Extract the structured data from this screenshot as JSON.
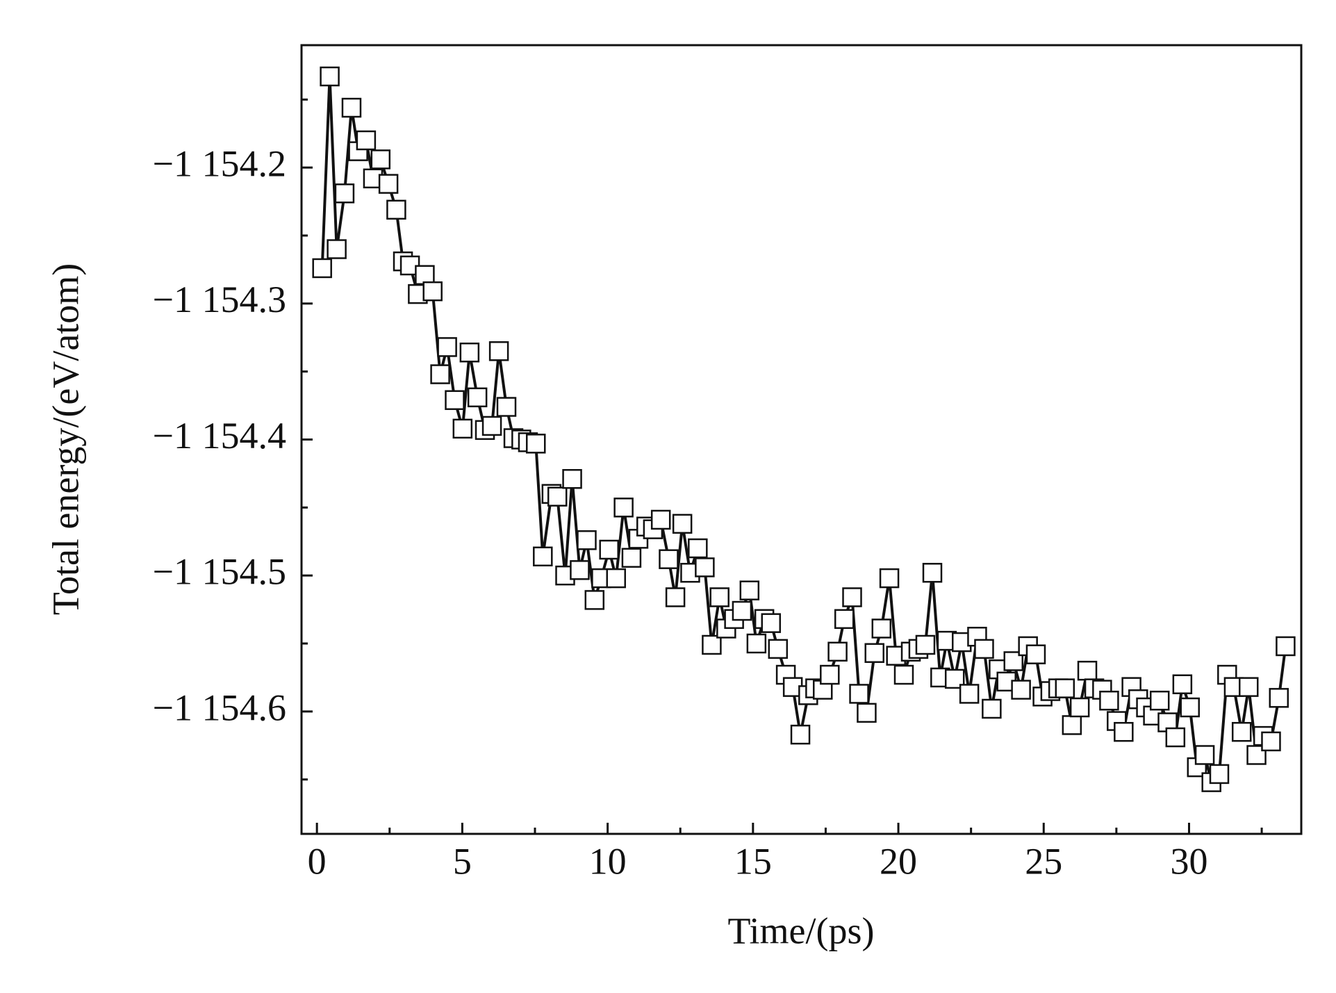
{
  "chart_data": {
    "type": "scatter",
    "x_label": "Time/(ps)",
    "y_label": "Total energy/(eV/atom)",
    "xlim": [
      -0.53,
      33.86
    ],
    "ylim": [
      -1154.69,
      -1154.11
    ],
    "xticks": [
      0,
      5,
      10,
      15,
      20,
      25,
      30
    ],
    "xminorticks": [
      2.5,
      7.5,
      12.5,
      17.5,
      22.5,
      27.5,
      32.5
    ],
    "yticks": [
      {
        "value": -1154.2,
        "label": "−1 154.2"
      },
      {
        "value": -1154.3,
        "label": "−1 154.3"
      },
      {
        "value": -1154.4,
        "label": "−1 154.4"
      },
      {
        "value": -1154.5,
        "label": "−1 154.5"
      },
      {
        "value": -1154.6,
        "label": "−1 154.6"
      }
    ],
    "yminorticks": [
      -1154.15,
      -1154.25,
      -1154.35,
      -1154.45,
      -1154.55,
      -1154.65
    ],
    "grid": false,
    "series": [
      {
        "color": "#111111",
        "x": [
          0.18,
          0.44,
          0.68,
          0.95,
          1.19,
          1.42,
          1.69,
          1.93,
          2.19,
          2.46,
          2.73,
          2.96,
          3.2,
          3.47,
          3.71,
          3.98,
          4.24,
          4.48,
          4.74,
          5.01,
          5.25,
          5.52,
          5.78,
          6.02,
          6.26,
          6.52,
          6.76,
          7.03,
          7.26,
          7.53,
          7.77,
          8.07,
          8.27,
          8.54,
          8.78,
          9.04,
          9.28,
          9.55,
          9.78,
          10.05,
          10.29,
          10.55,
          10.82,
          11.06,
          11.33,
          11.56,
          11.83,
          12.1,
          12.33,
          12.57,
          12.84,
          13.1,
          13.34,
          13.58,
          13.85,
          14.08,
          14.35,
          14.62,
          14.88,
          15.12,
          15.39,
          15.62,
          15.86,
          16.13,
          16.37,
          16.63,
          16.9,
          17.14,
          17.4,
          17.64,
          17.91,
          18.14,
          18.41,
          18.65,
          18.91,
          19.18,
          19.42,
          19.69,
          19.92,
          20.19,
          20.43,
          20.69,
          20.93,
          21.17,
          21.44,
          21.67,
          21.94,
          22.18,
          22.44,
          22.71,
          22.95,
          23.21,
          23.45,
          23.72,
          23.96,
          24.22,
          24.46,
          24.73,
          24.96,
          25.23,
          25.5,
          25.73,
          25.97,
          26.24,
          26.5,
          26.74,
          27.01,
          27.25,
          27.51,
          27.75,
          28.02,
          28.25,
          28.52,
          28.76,
          28.99,
          29.26,
          29.53,
          29.77,
          30.03,
          30.27,
          30.54,
          30.77,
          31.04,
          31.31,
          31.54,
          31.81,
          32.05,
          32.32,
          32.55,
          32.82,
          33.09,
          33.32
        ],
        "values": [
          -1154.274,
          -1154.133,
          -1154.26,
          -1154.219,
          -1154.156,
          -1154.188,
          -1154.18,
          -1154.208,
          -1154.194,
          -1154.212,
          -1154.231,
          -1154.269,
          -1154.272,
          -1154.293,
          -1154.279,
          -1154.291,
          -1154.352,
          -1154.332,
          -1154.371,
          -1154.392,
          -1154.336,
          -1154.369,
          -1154.393,
          -1154.39,
          -1154.335,
          -1154.376,
          -1154.399,
          -1154.4,
          -1154.402,
          -1154.403,
          -1154.486,
          -1154.44,
          -1154.442,
          -1154.5,
          -1154.429,
          -1154.496,
          -1154.474,
          -1154.518,
          -1154.502,
          -1154.481,
          -1154.502,
          -1154.45,
          -1154.487,
          -1154.473,
          -1154.464,
          -1154.466,
          -1154.459,
          -1154.488,
          -1154.516,
          -1154.462,
          -1154.498,
          -1154.48,
          -1154.494,
          -1154.551,
          -1154.516,
          -1154.539,
          -1154.532,
          -1154.526,
          -1154.511,
          -1154.55,
          -1154.532,
          -1154.535,
          -1154.554,
          -1154.573,
          -1154.582,
          -1154.617,
          -1154.588,
          -1154.583,
          -1154.584,
          -1154.573,
          -1154.556,
          -1154.532,
          -1154.516,
          -1154.587,
          -1154.601,
          -1154.557,
          -1154.539,
          -1154.502,
          -1154.559,
          -1154.573,
          -1154.556,
          -1154.554,
          -1154.551,
          -1154.498,
          -1154.575,
          -1154.548,
          -1154.576,
          -1154.549,
          -1154.587,
          -1154.545,
          -1154.554,
          -1154.598,
          -1154.569,
          -1154.578,
          -1154.563,
          -1154.584,
          -1154.552,
          -1154.558,
          -1154.589,
          -1154.585,
          -1154.583,
          -1154.583,
          -1154.61,
          -1154.597,
          -1154.57,
          -1154.583,
          -1154.584,
          -1154.592,
          -1154.607,
          -1154.615,
          -1154.582,
          -1154.591,
          -1154.597,
          -1154.603,
          -1154.592,
          -1154.608,
          -1154.619,
          -1154.58,
          -1154.597,
          -1154.641,
          -1154.632,
          -1154.652,
          -1154.646,
          -1154.573,
          -1154.582,
          -1154.615,
          -1154.582,
          -1154.632,
          -1154.618,
          -1154.622,
          -1154.59,
          -1154.552
        ]
      }
    ]
  }
}
